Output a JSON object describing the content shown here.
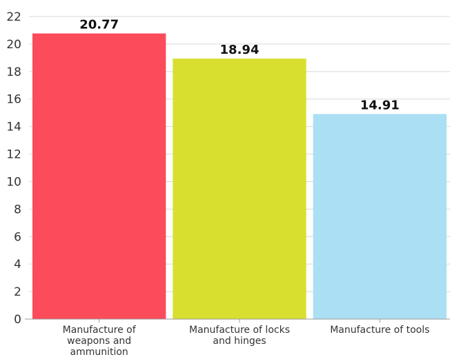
{
  "chart_data": {
    "type": "bar",
    "title": "",
    "xlabel": "",
    "ylabel": "",
    "categories": [
      [
        "Manufacture of",
        "weapons and",
        "ammunition"
      ],
      [
        "Manufacture of locks",
        "and hinges"
      ],
      [
        "Manufacture of tools"
      ]
    ],
    "values": [
      20.77,
      18.94,
      14.91
    ],
    "value_labels": [
      "20.77",
      "18.94",
      "14.91"
    ],
    "colors": [
      "#fc4b5a",
      "#d8df2e",
      "#abdff3"
    ],
    "ylim": [
      0,
      22
    ],
    "yticks": [
      0,
      2,
      4,
      6,
      8,
      10,
      12,
      14,
      16,
      18,
      20,
      22
    ],
    "grid": true,
    "legend": "none"
  }
}
